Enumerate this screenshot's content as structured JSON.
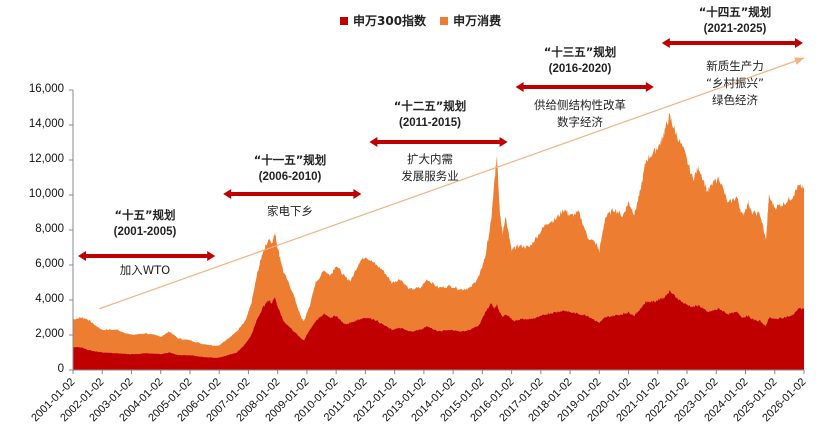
{
  "legend": {
    "items": [
      {
        "label": "申万300指数",
        "color": "#C00000"
      },
      {
        "label": "申万消费",
        "color": "#ED7D31"
      }
    ]
  },
  "annotations": [
    {
      "plan": "“十五”规划",
      "period": "(2001-2005)",
      "themes": [
        "加入WTO"
      ],
      "start": "2001-01-02",
      "end": "2006-01-02"
    },
    {
      "plan": "“十一五”规划",
      "period": "(2006-2010)",
      "themes": [
        "家电下乡"
      ],
      "start": "2006-01-02",
      "end": "2011-01-02"
    },
    {
      "plan": "“十二五”规划",
      "period": "(2011-2015)",
      "themes": [
        "扩大内需",
        "发展服务业"
      ],
      "start": "2011-01-02",
      "end": "2016-01-02"
    },
    {
      "plan": "“十三五”规划",
      "period": "(2016-2020)",
      "themes": [
        "供给侧结构性改革",
        "数字经济"
      ],
      "start": "2016-01-02",
      "end": "2021-01-02"
    },
    {
      "plan": "“十四五”规划",
      "period": "(2021-2025)",
      "themes": [
        "新质生产力",
        "“乡村振兴”",
        "绿色经济"
      ],
      "start": "2021-01-02",
      "end": "2026-01-02"
    }
  ],
  "chart_data": {
    "type": "area",
    "title": "",
    "xlabel": "",
    "ylabel": "",
    "ylim": [
      0,
      16000
    ],
    "yticks": [
      "0",
      "2,000",
      "4,000",
      "6,000",
      "8,000",
      "10,000",
      "12,000",
      "14,000",
      "16,000"
    ],
    "xticks": [
      "2001-01-02",
      "2002-01-02",
      "2003-01-02",
      "2004-01-02",
      "2005-01-02",
      "2006-01-02",
      "2007-01-02",
      "2008-01-02",
      "2009-01-02",
      "2010-01-02",
      "2011-01-02",
      "2012-01-02",
      "2013-01-02",
      "2014-01-02",
      "2015-01-02",
      "2016-01-02",
      "2017-01-02",
      "2018-01-02",
      "2019-01-02",
      "2020-01-02",
      "2021-01-02",
      "2022-01-02",
      "2023-01-02",
      "2024-01-02",
      "2025-01-02",
      "2026-01-02"
    ],
    "grid": false,
    "legend_position": "top",
    "trend_arrow": {
      "from": [
        2001.9,
        3500
      ],
      "to": [
        2026.0,
        18300
      ],
      "color": "#F4B183"
    },
    "x": [
      2001.0,
      2001.3,
      2001.5,
      2001.8,
      2002.0,
      2002.5,
      2003.0,
      2003.5,
      2004.0,
      2004.3,
      2004.6,
      2005.0,
      2005.4,
      2005.8,
      2006.0,
      2006.3,
      2006.6,
      2006.9,
      2007.1,
      2007.3,
      2007.5,
      2007.7,
      2007.8,
      2007.9,
      2008.0,
      2008.2,
      2008.5,
      2008.8,
      2008.9,
      2009.1,
      2009.3,
      2009.6,
      2009.8,
      2010.0,
      2010.3,
      2010.5,
      2010.8,
      2011.0,
      2011.3,
      2011.6,
      2011.9,
      2012.2,
      2012.5,
      2012.9,
      2013.1,
      2013.5,
      2013.9,
      2014.3,
      2014.6,
      2014.9,
      2015.1,
      2015.3,
      2015.4,
      2015.5,
      2015.6,
      2015.7,
      2015.8,
      2016.0,
      2016.1,
      2016.3,
      2016.6,
      2016.9,
      2017.2,
      2017.5,
      2017.8,
      2018.0,
      2018.3,
      2018.6,
      2018.9,
      2019.0,
      2019.2,
      2019.5,
      2019.8,
      2020.0,
      2020.2,
      2020.4,
      2020.6,
      2020.9,
      2021.1,
      2021.2,
      2021.4,
      2021.6,
      2021.9,
      2022.2,
      2022.4,
      2022.7,
      2022.9,
      2023.1,
      2023.4,
      2023.7,
      2023.9,
      2024.1,
      2024.2,
      2024.5,
      2024.7,
      2024.8,
      2025.0,
      2025.3,
      2025.6,
      2025.8,
      2026.0
    ],
    "series": [
      {
        "name": "申万消费",
        "color": "#ED7D31",
        "values": [
          2900,
          3000,
          2900,
          2500,
          2300,
          2300,
          2000,
          2100,
          1900,
          2200,
          1800,
          1700,
          1500,
          1400,
          1400,
          1800,
          2200,
          2800,
          3800,
          5500,
          6800,
          7500,
          7200,
          7900,
          7000,
          5600,
          4500,
          3000,
          2800,
          3700,
          5000,
          5700,
          5400,
          6000,
          5300,
          5100,
          6200,
          6500,
          6100,
          5700,
          5000,
          5200,
          4600,
          4700,
          5200,
          4700,
          4800,
          4600,
          4700,
          5400,
          6500,
          8500,
          10500,
          12300,
          9000,
          7800,
          8800,
          6800,
          7000,
          7100,
          7000,
          7700,
          8400,
          8600,
          9200,
          8800,
          9000,
          7600,
          7200,
          6800,
          8700,
          9200,
          8800,
          9600,
          8900,
          10200,
          12000,
          12500,
          13000,
          13500,
          14500,
          13600,
          12500,
          10900,
          11600,
          10200,
          10700,
          11000,
          9500,
          9900,
          8800,
          9600,
          9000,
          8900,
          7400,
          9900,
          9300,
          9500,
          9900,
          10500,
          10400
        ]
      },
      {
        "name": "申万300指数",
        "color": "#C00000",
        "values": [
          1300,
          1300,
          1150,
          1050,
          1000,
          950,
          900,
          950,
          900,
          1000,
          850,
          850,
          750,
          700,
          700,
          850,
          1000,
          1500,
          2000,
          2900,
          3600,
          4000,
          3800,
          4200,
          3600,
          2800,
          2300,
          1800,
          1700,
          2300,
          2800,
          3200,
          3000,
          3100,
          2600,
          2700,
          2900,
          3000,
          2900,
          2600,
          2300,
          2400,
          2200,
          2300,
          2500,
          2200,
          2300,
          2200,
          2300,
          2600,
          3300,
          3800,
          3500,
          3700,
          3300,
          3000,
          3200,
          2900,
          2800,
          2900,
          2900,
          3000,
          3200,
          3300,
          3400,
          3300,
          3200,
          3100,
          2800,
          2700,
          3000,
          3100,
          3200,
          3300,
          3100,
          3500,
          3900,
          3900,
          4100,
          4100,
          4500,
          4200,
          3800,
          3600,
          3700,
          3300,
          3400,
          3500,
          3200,
          3300,
          3000,
          3100,
          2900,
          2800,
          2500,
          3000,
          2900,
          3000,
          3100,
          3500,
          3500
        ]
      }
    ]
  }
}
